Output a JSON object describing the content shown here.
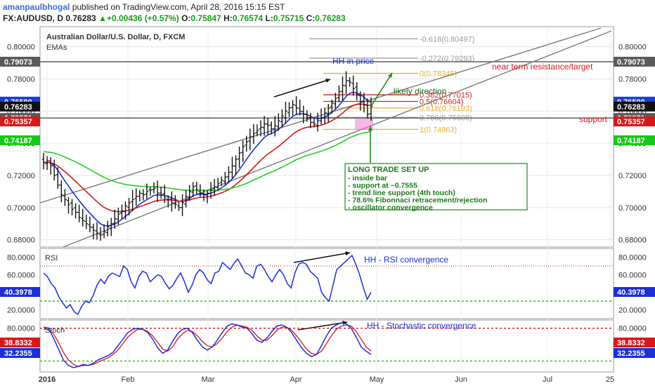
{
  "header": {
    "user": "amanpaulbhogal",
    "published": "published on TradingView.com, April 28, 2016 15:15 EST",
    "symbol": "FX:AUDUSD, D",
    "last": "0.76283",
    "change_arrow": "▲",
    "change": "+0.00436 (+0.57%)",
    "o_label": "O:",
    "o": "0.75847",
    "h_label": "H:",
    "h": "0.76574",
    "l_label": "L:",
    "l": "0.75715",
    "c_label": "C:",
    "c": "0.76283"
  },
  "chart_data": [
    {
      "type": "candlestick",
      "title": "Australian Dollar/U.S. Dollar, D, FXCM",
      "subtitle": "EMAs",
      "y_ticks": [
        0.68,
        0.7,
        0.72,
        0.74,
        0.76,
        0.78,
        0.8
      ],
      "y_tick_labels": [
        "0.68000",
        "0.70000",
        "0.72000",
        "0.74000",
        "0.76000",
        "0.78000",
        "0.80000"
      ],
      "ylim": [
        0.6755,
        0.8125
      ],
      "x_ticks": [
        "2016",
        "Feb",
        "Mar",
        "Apr",
        "May",
        "Jun",
        "Jul",
        "25"
      ],
      "close_series": [
        0.728,
        0.729,
        0.726,
        0.72,
        0.714,
        0.708,
        0.705,
        0.702,
        0.699,
        0.697,
        0.694,
        0.692,
        0.69,
        0.688,
        0.686,
        0.684,
        0.683,
        0.685,
        0.688,
        0.69,
        0.693,
        0.696,
        0.698,
        0.701,
        0.703,
        0.705,
        0.707,
        0.709,
        0.708,
        0.71,
        0.711,
        0.712,
        0.709,
        0.708,
        0.706,
        0.705,
        0.703,
        0.702,
        0.7,
        0.703,
        0.707,
        0.71,
        0.713,
        0.711,
        0.709,
        0.708,
        0.709,
        0.711,
        0.713,
        0.715,
        0.717,
        0.719,
        0.722,
        0.726,
        0.73,
        0.734,
        0.738,
        0.741,
        0.744,
        0.746,
        0.748,
        0.75,
        0.752,
        0.751,
        0.749,
        0.751,
        0.754,
        0.757,
        0.76,
        0.762,
        0.764,
        0.762,
        0.76,
        0.758,
        0.756,
        0.753,
        0.752,
        0.754,
        0.756,
        0.759,
        0.762,
        0.765,
        0.768,
        0.772,
        0.776,
        0.779,
        0.778,
        0.774,
        0.77,
        0.766,
        0.764,
        0.758,
        0.7628
      ],
      "price_labels": [
        {
          "value": 0.79073,
          "text": "0.79073",
          "color": "#5a5a5a"
        },
        {
          "value": 0.7659,
          "text": "0.76590",
          "color": "#1a3fd6"
        },
        {
          "value": 0.76283,
          "text": "0.76283",
          "color": "#111111"
        },
        {
          "value": 0.75571,
          "text": "0.75571",
          "color": "#5a5a5a"
        },
        {
          "value": 0.75357,
          "text": "0.75357",
          "color": "#d81818"
        },
        {
          "value": 0.74187,
          "text": "0.74187",
          "color": "#18c818"
        }
      ],
      "fib_levels": [
        {
          "value": 0.80497,
          "text": "-0.618(0.80497)",
          "color": "#9a9a9a"
        },
        {
          "value": 0.79293,
          "text": "-0.272(0.79293)",
          "color": "#9a9a9a"
        },
        {
          "value": 0.78345,
          "text": "0(0.78345)",
          "color": "#e8b030"
        },
        {
          "value": 0.77015,
          "text": "0.382(0.77015)",
          "color": "#d02020"
        },
        {
          "value": 0.76604,
          "text": "0.5(0.76604)",
          "color": "#d02020"
        },
        {
          "value": 0.76193,
          "text": "0.618(0.76193)",
          "color": "#e8b030"
        },
        {
          "value": 0.75608,
          "text": "0.786(0.75608)",
          "color": "#9a9a9a"
        },
        {
          "value": 0.74863,
          "text": "1(0.74863)",
          "color": "#e8b030"
        }
      ],
      "annotations": {
        "hh_price": "HH in price",
        "likely_direction": "likely direction",
        "resistance": "near term resistance/target",
        "support": "support",
        "setup_title": "LONG TRADE SET UP",
        "setup_items": [
          "- inside bar",
          "- support at ~0.7555",
          "- trend line support (4th touch)",
          "- 78.6% Fibonnaci retracement/rejection",
          "- oscillator convergence"
        ]
      },
      "colors": {
        "ema_fast": "#1a2fd6",
        "ema_mid": "#d81818",
        "ema_slow": "#20d020",
        "box_text": "#1a7a1a",
        "annotation_blue": "#1a2fd6",
        "annotation_red": "#d81818"
      }
    },
    {
      "type": "line",
      "title": "RSI",
      "y_tick_labels": [
        "20.0000",
        "40.0000",
        "60.0000",
        "80.0000"
      ],
      "ylim": [
        10,
        90
      ],
      "last_value": "40.3978",
      "levels": [
        70,
        30
      ],
      "annotation": "HH - RSI convergence",
      "series": [
        62,
        58,
        50,
        45,
        35,
        28,
        22,
        26,
        18,
        15,
        24,
        30,
        28,
        36,
        48,
        55,
        50,
        58,
        62,
        60,
        58,
        70,
        66,
        52,
        45,
        58,
        64,
        62,
        52,
        56,
        60,
        58,
        50,
        44,
        48,
        56,
        62,
        52,
        40,
        48,
        60,
        66,
        62,
        54,
        50,
        62,
        64,
        74,
        70,
        66,
        73,
        78,
        70,
        62,
        60,
        56,
        70,
        72,
        66,
        58,
        52,
        60,
        66,
        60,
        50,
        45,
        62,
        72,
        74,
        72,
        64,
        60,
        56,
        40,
        34,
        30,
        48,
        66,
        70,
        74,
        78,
        82,
        72,
        60,
        45,
        32,
        40
      ]
    },
    {
      "type": "line",
      "title": "Stoch",
      "y_tick_labels": [
        "80.0000"
      ],
      "ylim": [
        0,
        95
      ],
      "last_k": "38.8332",
      "last_d": "32.2355",
      "levels": [
        80,
        20
      ],
      "annotation": "HH - Stochastic convergence",
      "k_series": [
        82,
        80,
        62,
        42,
        22,
        12,
        8,
        10,
        14,
        12,
        16,
        22,
        26,
        30,
        36,
        48,
        60,
        72,
        78,
        80,
        78,
        72,
        60,
        44,
        34,
        40,
        56,
        70,
        78,
        80,
        72,
        58,
        46,
        40,
        46,
        58,
        72,
        84,
        88,
        86,
        82,
        80,
        70,
        58,
        54,
        62,
        74,
        84,
        86,
        82,
        72,
        58,
        44,
        34,
        28,
        32,
        48,
        66,
        80,
        86,
        90,
        88,
        80,
        64,
        46,
        38,
        32
      ],
      "d_series": [
        78,
        78,
        70,
        54,
        36,
        22,
        14,
        10,
        12,
        12,
        14,
        18,
        22,
        26,
        32,
        40,
        52,
        64,
        72,
        78,
        78,
        74,
        66,
        54,
        42,
        38,
        46,
        60,
        70,
        76,
        74,
        66,
        56,
        48,
        46,
        52,
        62,
        74,
        82,
        86,
        84,
        82,
        76,
        66,
        58,
        58,
        66,
        76,
        82,
        82,
        76,
        66,
        54,
        42,
        34,
        32,
        38,
        52,
        66,
        78,
        84,
        86,
        84,
        74,
        60,
        46,
        38
      ]
    }
  ]
}
